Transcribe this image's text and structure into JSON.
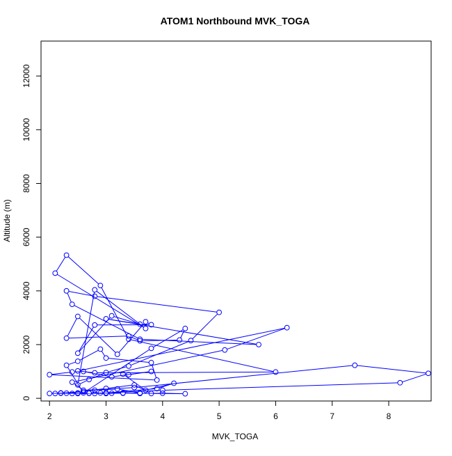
{
  "chart_data": {
    "type": "line",
    "title": "ATOM1 Northbound MVK_TOGA",
    "xlabel": "MVK_TOGA",
    "ylabel": "Altitude (m)",
    "xlim": [
      1.85,
      8.75
    ],
    "ylim": [
      -100,
      13300
    ],
    "xticks": [
      2,
      3,
      4,
      5,
      6,
      7,
      8
    ],
    "yticks": [
      0,
      2000,
      4000,
      6000,
      8000,
      10000,
      12000
    ],
    "grid": false,
    "marker": "open-circle",
    "series": [
      {
        "color": "#0000ff",
        "points": [
          [
            2.0,
            180
          ],
          [
            2.2,
            190
          ],
          [
            2.5,
            200
          ],
          [
            2.7,
            190
          ],
          [
            2.9,
            200
          ],
          [
            3.1,
            190
          ],
          [
            3.3,
            200
          ],
          [
            3.6,
            180
          ],
          [
            4.0,
            190
          ],
          [
            4.4,
            170
          ],
          [
            3.8,
            180
          ],
          [
            3.5,
            500
          ],
          [
            3.0,
            370
          ],
          [
            2.6,
            250
          ],
          [
            2.1,
            180
          ],
          [
            2.3,
            190
          ],
          [
            2.8,
            180
          ],
          [
            3.0,
            200
          ],
          [
            3.9,
            360
          ],
          [
            4.2,
            560
          ],
          [
            3.7,
            300
          ],
          [
            3.3,
            900
          ],
          [
            3.4,
            880
          ],
          [
            3.8,
            1000
          ],
          [
            3.1,
            800
          ],
          [
            2.6,
            1000
          ],
          [
            2.4,
            980
          ],
          [
            2.0,
            880
          ],
          [
            3.9,
            680
          ],
          [
            3.8,
            1330
          ],
          [
            3.0,
            1500
          ],
          [
            2.9,
            1830
          ],
          [
            2.5,
            1380
          ],
          [
            2.3,
            1230
          ],
          [
            2.6,
            200
          ],
          [
            3.8,
            1860
          ],
          [
            4.4,
            2600
          ],
          [
            4.3,
            2170
          ],
          [
            3.6,
            2140
          ],
          [
            3.4,
            2320
          ],
          [
            2.3,
            2240
          ],
          [
            2.5,
            3050
          ],
          [
            3.2,
            1640
          ],
          [
            3.7,
            2850
          ],
          [
            3.8,
            2740
          ],
          [
            2.8,
            2730
          ],
          [
            2.5,
            1680
          ],
          [
            3.1,
            3070
          ],
          [
            3.6,
            2760
          ],
          [
            3.0,
            2960
          ],
          [
            5.7,
            2000
          ],
          [
            3.6,
            2200
          ],
          [
            2.4,
            3500
          ],
          [
            2.3,
            4000
          ],
          [
            2.8,
            3800
          ],
          [
            5.0,
            3200
          ],
          [
            4.5,
            2150
          ],
          [
            3.4,
            1200
          ],
          [
            3.0,
            960
          ],
          [
            2.7,
            700
          ],
          [
            2.5,
            500
          ],
          [
            2.8,
            4040
          ],
          [
            3.7,
            2600
          ],
          [
            2.1,
            4660
          ],
          [
            2.3,
            5330
          ],
          [
            2.9,
            4200
          ],
          [
            3.4,
            2200
          ],
          [
            6.0,
            980
          ],
          [
            2.8,
            950
          ],
          [
            2.5,
            1020
          ],
          [
            6.2,
            2630
          ],
          [
            5.1,
            1800
          ],
          [
            2.4,
            600
          ],
          [
            2.6,
            300
          ],
          [
            3.5,
            400
          ],
          [
            7.4,
            1230
          ],
          [
            8.7,
            930
          ],
          [
            8.2,
            580
          ],
          [
            4.0,
            300
          ],
          [
            3.0,
            200
          ],
          [
            2.7,
            190
          ],
          [
            2.4,
            180
          ],
          [
            2.2,
            200
          ],
          [
            2.5,
            180
          ],
          [
            2.7,
            190
          ],
          [
            3.0,
            180
          ],
          [
            3.3,
            190
          ],
          [
            3.6,
            200
          ],
          [
            3.2,
            350
          ],
          [
            2.8,
            300
          ]
        ]
      }
    ]
  }
}
